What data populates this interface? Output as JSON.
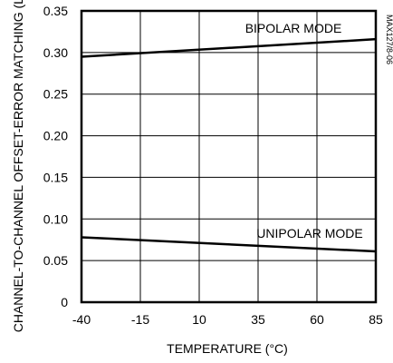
{
  "chart_data": {
    "type": "line",
    "title": "",
    "xlabel": "TEMPERATURE (°C)",
    "ylabel": "CHANNEL-TO-CHANNEL OFFSET-ERROR MATCHING (LSB)",
    "x_ticks": [
      "-40",
      "-15",
      "10",
      "35",
      "60",
      "85"
    ],
    "y_ticks": [
      "0",
      "0.05",
      "0.10",
      "0.15",
      "0.20",
      "0.25",
      "0.30",
      "0.35"
    ],
    "xlim": [
      -40,
      85
    ],
    "ylim": [
      0,
      0.35
    ],
    "grid": true,
    "series": [
      {
        "name": "BIPOLAR MODE",
        "x": [
          -40,
          85
        ],
        "y": [
          0.295,
          0.316
        ]
      },
      {
        "name": "UNIPOLAR MODE",
        "x": [
          -40,
          85
        ],
        "y": [
          0.078,
          0.061
        ]
      }
    ],
    "annotation": "MAX127/8-06",
    "colors": {
      "line": "#000000",
      "grid": "#000000"
    }
  }
}
